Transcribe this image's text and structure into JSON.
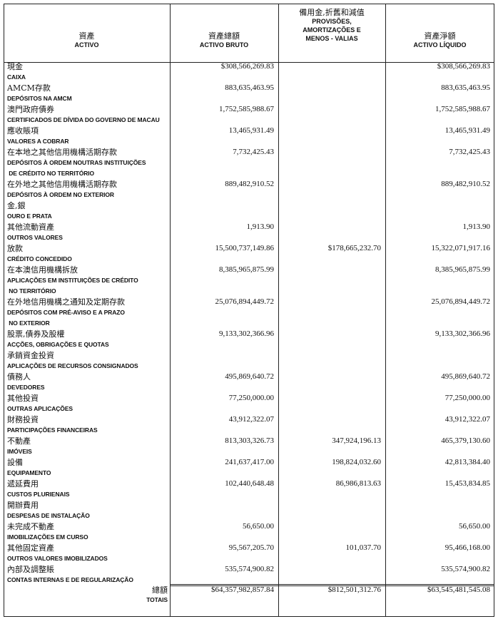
{
  "header": {
    "columns": [
      {
        "lines": [
          "資產",
          "ACTIVO"
        ]
      },
      {
        "lines": [
          "資產總額",
          "ACTIVO BRUTO"
        ]
      },
      {
        "lines": [
          "備用金,折舊和減值",
          "PROVISÕES,",
          "AMORTIZAÇÕES E",
          "MENOS - VALIAS"
        ]
      },
      {
        "lines": [
          "資產淨額",
          "ACTIVO LÍQUIDO"
        ]
      }
    ]
  },
  "table": {
    "rows": [
      {
        "zh": "現金",
        "pt": [
          "CAIXA"
        ],
        "gross": "$308,566,269.83",
        "net": "$308,566,269.83"
      },
      {
        "zh": "AMCM存款",
        "pt": [
          "DEPÓSITOS NA AMCM"
        ],
        "gross": "883,635,463.95",
        "net": "883,635,463.95"
      },
      {
        "zh": "澳門政府債券",
        "pt": [
          "CERTIFICADOS DE DÍVIDA DO GOVERNO DE MACAU"
        ],
        "gross": "1,752,585,988.67",
        "net": "1,752,585,988.67"
      },
      {
        "zh": "應收賬項",
        "pt": [
          "VALORES A COBRAR"
        ],
        "gross": "13,465,931.49",
        "net": "13,465,931.49"
      },
      {
        "zh": "在本地之其他信用機構活期存款",
        "pt": [
          "DEPÓSITOS À ORDEM NOUTRAS INSTITUIÇÕES",
          " DE CRÉDITO NO TERRITÓRIO"
        ],
        "gross": "7,732,425.43",
        "net": "7,732,425.43"
      },
      {
        "zh": "在外地之其他信用機構活期存款",
        "pt": [
          "DEPÓSITOS À ORDEM NO EXTERIOR"
        ],
        "gross": "889,482,910.52",
        "net": "889,482,910.52"
      },
      {
        "zh": "金,銀",
        "pt": [
          "OURO E PRATA"
        ]
      },
      {
        "zh": "其他流動資產",
        "pt": [
          "OUTROS VALORES"
        ],
        "gross": "1,913.90",
        "net": "1,913.90"
      },
      {
        "zh": "放款",
        "pt": [
          "CRÉDITO CONCEDIDO"
        ],
        "gross": "15,500,737,149.86",
        "provisions": "$178,665,232.70",
        "net": "15,322,071,917.16"
      },
      {
        "zh": "在本澳信用機構拆放",
        "pt": [
          "APLICAÇÕES EM INSTITUIÇÕES DE CRÉDITO",
          " NO TERRITÓRIO"
        ],
        "gross": "8,385,965,875.99",
        "net": "8,385,965,875.99"
      },
      {
        "zh": "在外地信用機構之通知及定期存款",
        "pt": [
          "DEPÓSITOS COM PRÉ-AVISO E A PRAZO",
          " NO EXTERIOR"
        ],
        "gross": "25,076,894,449.72",
        "net": "25,076,894,449.72"
      },
      {
        "zh": "股票,債券及股權",
        "pt": [
          "ACÇÕES, OBRIGAÇÕES E QUOTAS"
        ],
        "gross": "9,133,302,366.96",
        "net": "9,133,302,366.96"
      },
      {
        "zh": "承銷資金投資",
        "pt": [
          "APLICAÇÕES DE RECURSOS CONSIGNADOS"
        ]
      },
      {
        "zh": "債務人",
        "pt": [
          "DEVEDORES"
        ],
        "gross": "495,869,640.72",
        "net": "495,869,640.72"
      },
      {
        "zh": "其他投資",
        "pt": [
          "OUTRAS APLICAÇÕES"
        ],
        "gross": "77,250,000.00",
        "net": "77,250,000.00"
      },
      {
        "zh": "財務投資",
        "pt": [
          "PARTICIPAÇÕES FINANCEIRAS"
        ],
        "gross": "43,912,322.07",
        "net": "43,912,322.07"
      },
      {
        "zh": "不動產",
        "pt": [
          "IMÓVEIS"
        ],
        "gross": "813,303,326.73",
        "provisions": "347,924,196.13",
        "net": "465,379,130.60"
      },
      {
        "zh": "設備",
        "pt": [
          "EQUIPAMENTO"
        ],
        "gross": "241,637,417.00",
        "provisions": "198,824,032.60",
        "net": "42,813,384.40"
      },
      {
        "zh": "遞延費用",
        "pt": [
          "CUSTOS PLURIENAIS"
        ],
        "gross": "102,440,648.48",
        "provisions": "86,986,813.63",
        "net": "15,453,834.85"
      },
      {
        "zh": "開辦費用",
        "pt": [
          "DESPESAS DE INSTALAÇÃO"
        ]
      },
      {
        "zh": "未完成不動產",
        "pt": [
          "IMOBILIZAÇÕES EM CURSO"
        ],
        "gross": "56,650.00",
        "net": "56,650.00"
      },
      {
        "zh": "其他固定資產",
        "pt": [
          "OUTROS VALORES IMOBILIZADOS"
        ],
        "gross": "95,567,205.70",
        "provisions": "101,037.70",
        "net": "95,466,168.00"
      },
      {
        "zh": "內部及調整賬",
        "pt": [
          "CONTAS INTERNAS E DE REGULARIZAÇÃO"
        ],
        "gross": "535,574,900.82",
        "net": "535,574,900.82"
      }
    ],
    "totals": {
      "zh": "總額",
      "pt": "TOTAIS",
      "gross": "$64,357,982,857.84",
      "provisions": "$812,501,312.76",
      "net": "$63,545,481,545.08"
    }
  }
}
